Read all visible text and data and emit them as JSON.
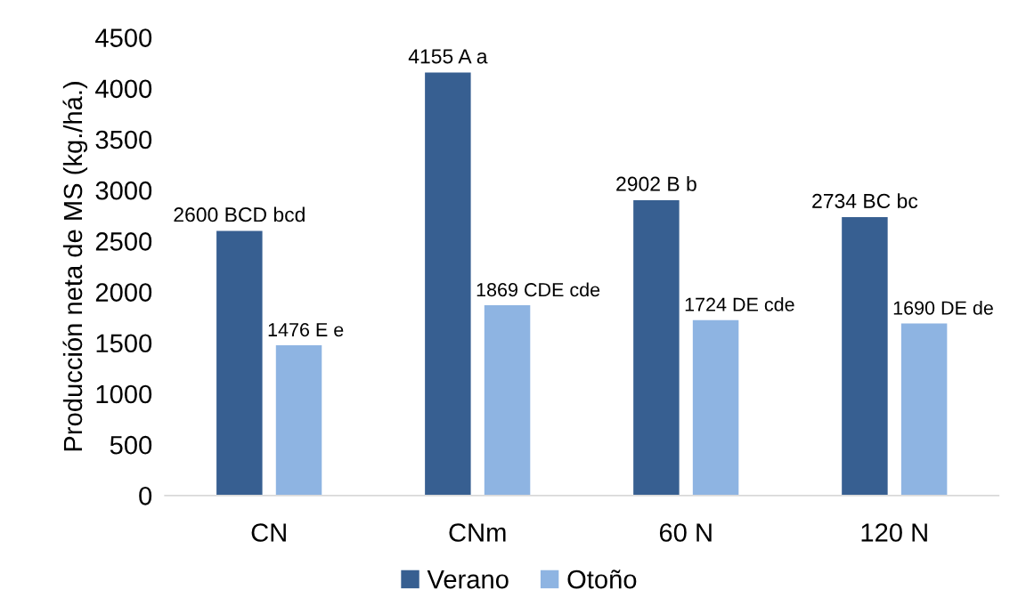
{
  "chart_data": {
    "type": "bar",
    "ylabel": "Producción neta de MS (kg./há.)",
    "categories": [
      "CN",
      "CNm",
      "60 N",
      "120 N"
    ],
    "series": [
      {
        "name": "Verano",
        "color": "#375f91",
        "values": [
          2600,
          4155,
          2902,
          2734
        ],
        "value_labels": [
          "2600 BCD bcd",
          "4155 A a",
          "2902 B b",
          "2734 BC bc"
        ]
      },
      {
        "name": "Otoño",
        "color": "#8eb4e2",
        "values": [
          1476,
          1869,
          1724,
          1690
        ],
        "value_labels": [
          "1476 E e",
          "1869 CDE cde",
          "1724 DE cde",
          "1690 DE de"
        ]
      }
    ],
    "ylim": [
      0,
      4500
    ],
    "yticks": [
      0,
      500,
      1000,
      1500,
      2000,
      2500,
      3000,
      3500,
      4000,
      4500
    ],
    "grid": false,
    "legend": "bottom"
  }
}
